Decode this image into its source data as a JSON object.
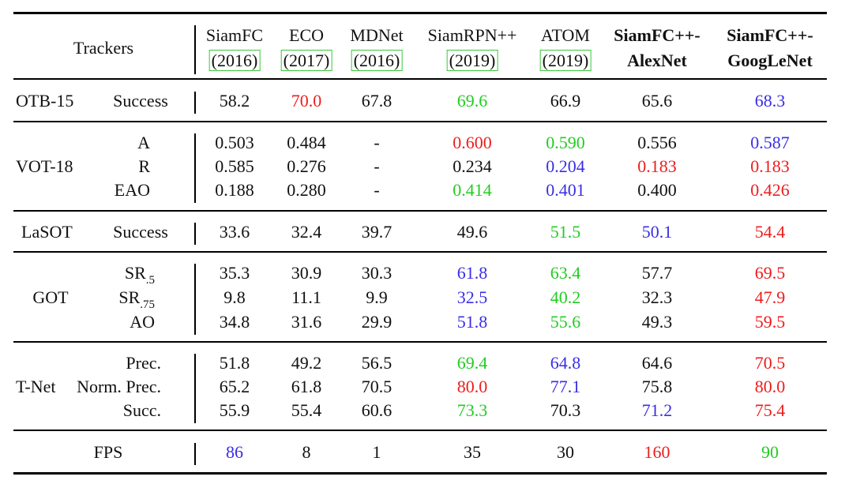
{
  "header": {
    "trackers_label": "Trackers",
    "columns": [
      {
        "name": "SiamFC",
        "year": "(2016)",
        "bold": false
      },
      {
        "name": "ECO",
        "year": "(2017)",
        "bold": false
      },
      {
        "name": "MDNet",
        "year": "(2016)",
        "bold": false
      },
      {
        "name": "SiamRPN++",
        "year": "(2019)",
        "bold": false
      },
      {
        "name": "ATOM",
        "year": "(2019)",
        "bold": false
      },
      {
        "name": "SiamFC++-",
        "year": "AlexNet",
        "bold": true
      },
      {
        "name": "SiamFC++-",
        "year": "GoogLeNet",
        "bold": true
      }
    ]
  },
  "groups": [
    {
      "benchmark": "OTB-15",
      "rows": [
        {
          "metric": "Success",
          "sub": "",
          "values": [
            {
              "v": "58.2",
              "c": "black"
            },
            {
              "v": "70.0",
              "c": "red"
            },
            {
              "v": "67.8",
              "c": "black"
            },
            {
              "v": "69.6",
              "c": "green"
            },
            {
              "v": "66.9",
              "c": "black"
            },
            {
              "v": "65.6",
              "c": "black"
            },
            {
              "v": "68.3",
              "c": "blue"
            }
          ]
        }
      ]
    },
    {
      "benchmark": "VOT-18",
      "rows": [
        {
          "metric": "A",
          "sub": "",
          "values": [
            {
              "v": "0.503",
              "c": "black"
            },
            {
              "v": "0.484",
              "c": "black"
            },
            {
              "v": "-",
              "c": "black"
            },
            {
              "v": "0.600",
              "c": "red"
            },
            {
              "v": "0.590",
              "c": "green"
            },
            {
              "v": "0.556",
              "c": "black"
            },
            {
              "v": "0.587",
              "c": "blue"
            }
          ]
        },
        {
          "metric": "R",
          "sub": "",
          "values": [
            {
              "v": "0.585",
              "c": "black"
            },
            {
              "v": "0.276",
              "c": "black"
            },
            {
              "v": "-",
              "c": "black"
            },
            {
              "v": "0.234",
              "c": "black"
            },
            {
              "v": "0.204",
              "c": "blue"
            },
            {
              "v": "0.183",
              "c": "red"
            },
            {
              "v": "0.183",
              "c": "red"
            }
          ]
        },
        {
          "metric": "EAO",
          "sub": "",
          "values": [
            {
              "v": "0.188",
              "c": "black"
            },
            {
              "v": "0.280",
              "c": "black"
            },
            {
              "v": "-",
              "c": "black"
            },
            {
              "v": "0.414",
              "c": "green"
            },
            {
              "v": "0.401",
              "c": "blue"
            },
            {
              "v": "0.400",
              "c": "black"
            },
            {
              "v": "0.426",
              "c": "red"
            }
          ]
        }
      ]
    },
    {
      "benchmark": "LaSOT",
      "rows": [
        {
          "metric": "Success",
          "sub": "",
          "values": [
            {
              "v": "33.6",
              "c": "black"
            },
            {
              "v": "32.4",
              "c": "black"
            },
            {
              "v": "39.7",
              "c": "black"
            },
            {
              "v": "49.6",
              "c": "black"
            },
            {
              "v": "51.5",
              "c": "green"
            },
            {
              "v": "50.1",
              "c": "blue"
            },
            {
              "v": "54.4",
              "c": "red"
            }
          ]
        }
      ]
    },
    {
      "benchmark": "GOT",
      "rows": [
        {
          "metric": "SR",
          "sub": ".5",
          "values": [
            {
              "v": "35.3",
              "c": "black"
            },
            {
              "v": "30.9",
              "c": "black"
            },
            {
              "v": "30.3",
              "c": "black"
            },
            {
              "v": "61.8",
              "c": "blue"
            },
            {
              "v": "63.4",
              "c": "green"
            },
            {
              "v": "57.7",
              "c": "black"
            },
            {
              "v": "69.5",
              "c": "red"
            }
          ]
        },
        {
          "metric": "SR",
          "sub": ".75",
          "values": [
            {
              "v": "9.8",
              "c": "black"
            },
            {
              "v": "11.1",
              "c": "black"
            },
            {
              "v": "9.9",
              "c": "black"
            },
            {
              "v": "32.5",
              "c": "blue"
            },
            {
              "v": "40.2",
              "c": "green"
            },
            {
              "v": "32.3",
              "c": "black"
            },
            {
              "v": "47.9",
              "c": "red"
            }
          ]
        },
        {
          "metric": "AO",
          "sub": "",
          "values": [
            {
              "v": "34.8",
              "c": "black"
            },
            {
              "v": "31.6",
              "c": "black"
            },
            {
              "v": "29.9",
              "c": "black"
            },
            {
              "v": "51.8",
              "c": "blue"
            },
            {
              "v": "55.6",
              "c": "green"
            },
            {
              "v": "49.3",
              "c": "black"
            },
            {
              "v": "59.5",
              "c": "red"
            }
          ]
        }
      ]
    },
    {
      "benchmark": "T-Net",
      "rows": [
        {
          "metric": "Prec.",
          "sub": "",
          "values": [
            {
              "v": "51.8",
              "c": "black"
            },
            {
              "v": "49.2",
              "c": "black"
            },
            {
              "v": "56.5",
              "c": "black"
            },
            {
              "v": "69.4",
              "c": "green"
            },
            {
              "v": "64.8",
              "c": "blue"
            },
            {
              "v": "64.6",
              "c": "black"
            },
            {
              "v": "70.5",
              "c": "red"
            }
          ]
        },
        {
          "metric": "Norm. Prec.",
          "sub": "",
          "values": [
            {
              "v": "65.2",
              "c": "black"
            },
            {
              "v": "61.8",
              "c": "black"
            },
            {
              "v": "70.5",
              "c": "black"
            },
            {
              "v": "80.0",
              "c": "red"
            },
            {
              "v": "77.1",
              "c": "blue"
            },
            {
              "v": "75.8",
              "c": "black"
            },
            {
              "v": "80.0",
              "c": "red"
            }
          ]
        },
        {
          "metric": "Succ.",
          "sub": "",
          "values": [
            {
              "v": "55.9",
              "c": "black"
            },
            {
              "v": "55.4",
              "c": "black"
            },
            {
              "v": "60.6",
              "c": "black"
            },
            {
              "v": "73.3",
              "c": "green"
            },
            {
              "v": "70.3",
              "c": "black"
            },
            {
              "v": "71.2",
              "c": "blue"
            },
            {
              "v": "75.4",
              "c": "red"
            }
          ]
        }
      ]
    },
    {
      "benchmark": "FPS",
      "rows": [
        {
          "metric": "",
          "sub": "",
          "values": [
            {
              "v": "86",
              "c": "blue"
            },
            {
              "v": "8",
              "c": "black"
            },
            {
              "v": "1",
              "c": "black"
            },
            {
              "v": "35",
              "c": "black"
            },
            {
              "v": "30",
              "c": "black"
            },
            {
              "v": "160",
              "c": "red"
            },
            {
              "v": "90",
              "c": "green"
            }
          ]
        }
      ]
    }
  ],
  "colors": {
    "red": "#ee1c1c",
    "green": "#22cc22",
    "blue": "#3a2ee6",
    "black": "#111111",
    "box": "#37c837"
  }
}
